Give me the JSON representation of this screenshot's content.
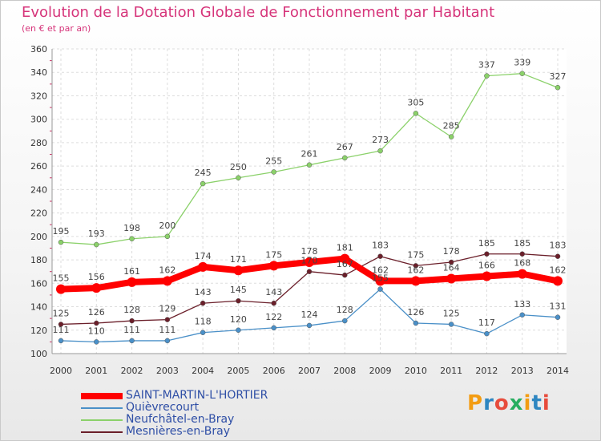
{
  "title": "Evolution de la Dotation Globale de Fonctionnement par Habitant",
  "subtitle": "(en € et par an)",
  "logo_text": "Proxiti",
  "chart_data": {
    "type": "line",
    "x": [
      2000,
      2001,
      2002,
      2003,
      2004,
      2005,
      2006,
      2007,
      2008,
      2009,
      2010,
      2011,
      2012,
      2013,
      2014
    ],
    "ylim": [
      100,
      360
    ],
    "ytick_step": 20,
    "grid": true,
    "legend_position": "bottom-left",
    "series": [
      {
        "name": "SAINT-MARTIN-L'HORTIER",
        "color": "#ff0000",
        "highlight": true,
        "values": [
          155,
          156,
          161,
          162,
          174,
          171,
          175,
          178,
          181,
          162,
          162,
          164,
          166,
          168,
          162
        ]
      },
      {
        "name": "Quièvrecourt",
        "color": "#4a90c8",
        "values": [
          111,
          110,
          111,
          111,
          118,
          120,
          122,
          124,
          128,
          155,
          126,
          125,
          117,
          133,
          131
        ]
      },
      {
        "name": "Neufchâtel-en-Bray",
        "color": "#8bd16a",
        "values": [
          195,
          193,
          198,
          200,
          245,
          250,
          255,
          261,
          267,
          273,
          305,
          285,
          337,
          339,
          327
        ]
      },
      {
        "name": "Mesnières-en-Bray",
        "color": "#6b1f2a",
        "values": [
          125,
          126,
          128,
          129,
          143,
          145,
          143,
          170,
          167,
          183,
          175,
          178,
          185,
          185,
          183
        ]
      }
    ]
  }
}
